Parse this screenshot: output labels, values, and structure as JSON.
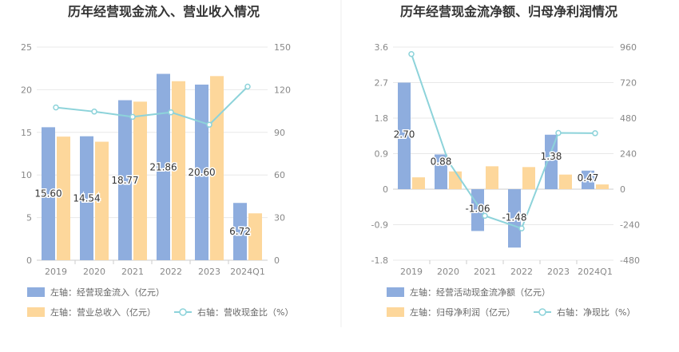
{
  "colors": {
    "bar_blue": "#8eadde",
    "bar_orange": "#fdd79b",
    "line": "#8dd3da",
    "axis_text": "#888888",
    "grid": "#e8e8e8",
    "title": "#333333"
  },
  "chart_data": [
    {
      "type": "bar",
      "title": "历年经营现金流入、营业收入情况",
      "categories": [
        "2019",
        "2020",
        "2021",
        "2022",
        "2023",
        "2024Q1"
      ],
      "left_axis": {
        "ticks": [
          "0",
          "5",
          "10",
          "15",
          "20",
          "25"
        ],
        "ylim": [
          0,
          25
        ]
      },
      "right_axis": {
        "ticks": [
          "0",
          "30",
          "60",
          "90",
          "120",
          "150"
        ],
        "ylim": [
          0,
          150
        ]
      },
      "series": [
        {
          "name": "左轴：经营现金流入（亿元）",
          "kind": "bar",
          "axis": "left",
          "color": "#8eadde",
          "values": [
            15.6,
            14.54,
            18.77,
            21.86,
            20.6,
            6.72
          ],
          "labels": [
            "15.60",
            "14.54",
            "18.77",
            "21.86",
            "20.60",
            "6.72"
          ]
        },
        {
          "name": "左轴：营业总收入（亿元）",
          "kind": "bar",
          "axis": "left",
          "color": "#fdd79b",
          "values": [
            14.5,
            13.9,
            18.6,
            21.0,
            21.6,
            5.5
          ]
        },
        {
          "name": "右轴：营收现金比（%）",
          "kind": "line",
          "axis": "right",
          "color": "#8dd3da",
          "values": [
            107.5,
            104.6,
            100.9,
            104.1,
            95.4,
            122.2
          ]
        }
      ],
      "legend": [
        "左轴：经营现金流入（亿元）",
        "左轴：营业总收入（亿元）",
        "右轴：营收现金比（%）"
      ]
    },
    {
      "type": "bar",
      "title": "历年经营现金流净额、归母净利润情况",
      "categories": [
        "2019",
        "2020",
        "2021",
        "2022",
        "2023",
        "2024Q1"
      ],
      "left_axis": {
        "ticks": [
          "-1.8",
          "-0.9",
          "0",
          "0.9",
          "1.8",
          "2.7",
          "3.6"
        ],
        "ylim": [
          -1.8,
          3.6
        ]
      },
      "right_axis": {
        "ticks": [
          "-480",
          "-240",
          "0",
          "240",
          "480",
          "720",
          "960"
        ],
        "ylim": [
          -480,
          960
        ]
      },
      "series": [
        {
          "name": "左轴：经营活动现金流净额（亿元）",
          "kind": "bar",
          "axis": "left",
          "color": "#8eadde",
          "values": [
            2.7,
            0.88,
            -1.06,
            -1.48,
            1.38,
            0.47
          ],
          "labels": [
            "2.70",
            "0.88",
            "-1.06",
            "-1.48",
            "1.38",
            "0.47"
          ]
        },
        {
          "name": "左轴：归母净利润（亿元）",
          "kind": "bar",
          "axis": "left",
          "color": "#fdd79b",
          "values": [
            0.3,
            0.45,
            0.58,
            0.56,
            0.37,
            0.12
          ]
        },
        {
          "name": "右轴：净现比（%）",
          "kind": "line",
          "axis": "right",
          "color": "#8dd3da",
          "values": [
            913,
            190,
            -180,
            -265,
            380,
            378
          ]
        }
      ],
      "legend": [
        "左轴：经营活动现金流净额（亿元）",
        "左轴：归母净利润（亿元）",
        "右轴：净现比（%）"
      ]
    }
  ]
}
